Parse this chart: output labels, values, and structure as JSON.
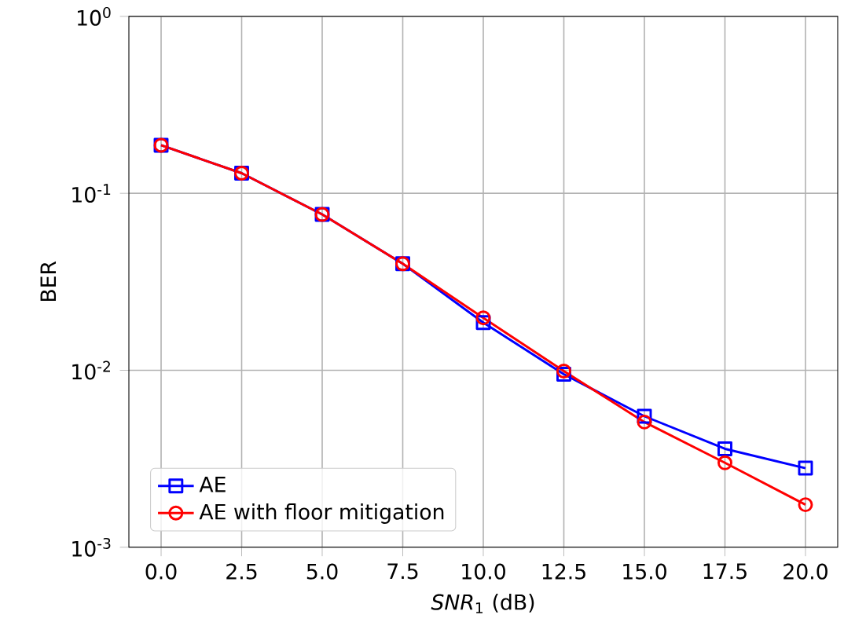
{
  "chart_data": {
    "type": "line",
    "xlabel": "*SNR*$_{1}$ (dB)",
    "ylabel": "BER",
    "log": "y",
    "grid": true,
    "legend": "bottom left",
    "x": [
      0,
      2.5,
      5,
      7.5,
      10,
      12.5,
      15,
      17.5,
      20
    ],
    "xlim": [
      -1,
      21
    ],
    "xticks": [
      {
        "value": 0,
        "label": "0.0"
      },
      2.5,
      {
        "value": 5,
        "label": "5.0"
      },
      7.5,
      {
        "value": 10,
        "label": "10.0"
      },
      12.5,
      {
        "value": 15,
        "label": "15.0"
      },
      17.5,
      {
        "value": 20,
        "label": "20.0"
      }
    ],
    "ylim": [
      0.001,
      1
    ],
    "yticks": [
      {
        "value": 0.001,
        "label": "10$^{-3}$"
      },
      {
        "value": 0.01,
        "label": "10$^{-2}$"
      },
      {
        "value": 0.1,
        "label": "10$^{-1}$"
      },
      {
        "value": 1,
        "label": "10$^{0}$"
      }
    ],
    "series": [
      {
        "name": "AE",
        "color": "#0000ff",
        "marker": "square",
        "values": [
          0.187,
          0.13,
          0.076,
          0.04,
          0.0186,
          0.0095,
          0.0055,
          0.0036,
          0.0028
        ]
      },
      {
        "name": "AE with floor mitigation",
        "color": "#ff0000",
        "marker": "circle",
        "values": [
          0.187,
          0.13,
          0.076,
          0.04,
          0.0198,
          0.0099,
          0.0051,
          0.003,
          0.00174
        ]
      }
    ]
  }
}
